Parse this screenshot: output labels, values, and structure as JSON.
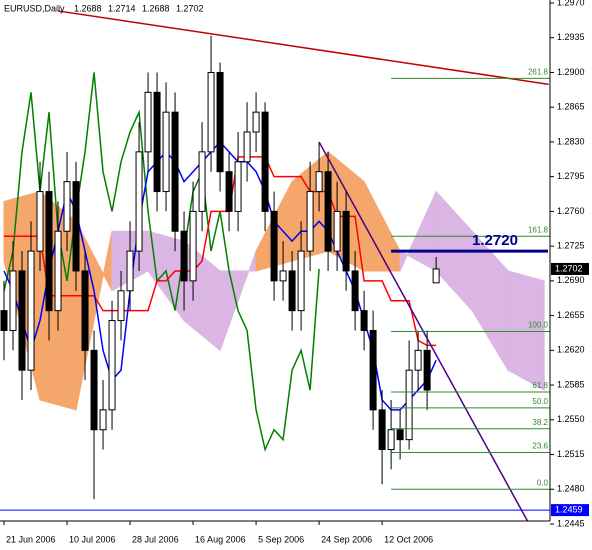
{
  "chart_data": {
    "type": "candlestick",
    "symbol": "EURUSD,Daily",
    "x": [
      0,
      2,
      4,
      6,
      8,
      10,
      12,
      14,
      16,
      18,
      20,
      22,
      24,
      26,
      28,
      30,
      32,
      34,
      36,
      38,
      40,
      42,
      44,
      46,
      48,
      50,
      52,
      54,
      56,
      58,
      60,
      62,
      64,
      66,
      68,
      70,
      72,
      74,
      76,
      78,
      80,
      82,
      84,
      86,
      88,
      90,
      92,
      94,
      96
    ],
    "open": [
      1.266,
      1.264,
      1.27,
      1.26,
      1.272,
      1.278,
      1.266,
      1.274,
      1.279,
      1.27,
      1.262,
      1.254,
      1.256,
      1.265,
      1.268,
      1.272,
      1.282,
      1.288,
      1.278,
      1.286,
      1.274,
      1.269,
      1.276,
      1.282,
      1.29,
      1.28,
      1.276,
      1.281,
      1.284,
      1.286,
      1.276,
      1.269,
      1.27,
      1.266,
      1.272,
      1.278,
      1.28,
      1.272,
      1.276,
      1.27,
      1.266,
      1.264,
      1.256,
      1.252,
      1.254,
      1.253,
      1.26,
      1.262,
      1.2688
    ],
    "high": [
      1.269,
      1.273,
      1.272,
      1.275,
      1.281,
      1.28,
      1.277,
      1.282,
      1.281,
      1.272,
      1.264,
      1.259,
      1.267,
      1.27,
      1.275,
      1.285,
      1.29,
      1.29,
      1.289,
      1.288,
      1.276,
      1.279,
      1.285,
      1.2937,
      1.291,
      1.282,
      1.284,
      1.287,
      1.288,
      1.287,
      1.278,
      1.273,
      1.272,
      1.275,
      1.281,
      1.283,
      1.282,
      1.279,
      1.278,
      1.272,
      1.268,
      1.266,
      1.258,
      1.257,
      1.256,
      1.263,
      1.264,
      1.264,
      1.2714
    ],
    "low": [
      1.261,
      1.262,
      1.257,
      1.258,
      1.27,
      1.263,
      1.264,
      1.272,
      1.268,
      1.259,
      1.247,
      1.252,
      1.254,
      1.263,
      1.266,
      1.27,
      1.28,
      1.276,
      1.276,
      1.272,
      1.266,
      1.267,
      1.274,
      1.28,
      1.278,
      1.274,
      1.274,
      1.279,
      1.282,
      1.274,
      1.267,
      1.267,
      1.264,
      1.264,
      1.27,
      1.276,
      1.27,
      1.27,
      1.268,
      1.264,
      1.262,
      1.254,
      1.2485,
      1.25,
      1.251,
      1.252,
      1.258,
      1.256,
      1.2688
    ],
    "close": [
      1.264,
      1.27,
      1.26,
      1.272,
      1.278,
      1.266,
      1.274,
      1.279,
      1.27,
      1.262,
      1.254,
      1.256,
      1.265,
      1.268,
      1.272,
      1.282,
      1.288,
      1.278,
      1.286,
      1.274,
      1.269,
      1.276,
      1.282,
      1.29,
      1.28,
      1.276,
      1.281,
      1.284,
      1.286,
      1.276,
      1.269,
      1.27,
      1.266,
      1.272,
      1.278,
      1.28,
      1.272,
      1.276,
      1.27,
      1.266,
      1.264,
      1.256,
      1.252,
      1.254,
      1.253,
      1.26,
      1.262,
      1.258,
      1.2702
    ],
    "tenkan": {
      "color": "#0000ff",
      "values": [
        1.27,
        1.268,
        1.265,
        1.262,
        1.265,
        1.27,
        1.274,
        1.278,
        1.276,
        1.272,
        1.268,
        1.262,
        1.259,
        1.26,
        1.268,
        1.275,
        1.28,
        1.281,
        1.282,
        1.281,
        1.279,
        1.28,
        1.281,
        1.282,
        1.283,
        1.282,
        1.281,
        1.281,
        1.28,
        1.278,
        1.275,
        1.274,
        1.273,
        1.274,
        1.274,
        1.275,
        1.274,
        1.272,
        1.27,
        1.268,
        1.265,
        1.262,
        1.257,
        1.256,
        1.256,
        1.257,
        1.258,
        1.259,
        1.261
      ]
    },
    "kijun": {
      "color": "#ff0000",
      "values": [
        1.2735,
        1.2735,
        1.2735,
        1.2735,
        1.2735,
        1.2675,
        1.2675,
        1.2675,
        1.2675,
        1.2675,
        1.2675,
        1.266,
        1.266,
        1.266,
        1.266,
        1.266,
        1.266,
        1.269,
        1.269,
        1.27,
        1.27,
        1.27,
        1.271,
        1.276,
        1.276,
        1.276,
        1.2815,
        1.2815,
        1.2815,
        1.2815,
        1.2795,
        1.2795,
        1.2795,
        1.2795,
        1.278,
        1.278,
        1.278,
        1.2755,
        1.2755,
        1.2755,
        1.269,
        1.269,
        1.269,
        1.267,
        1.267,
        1.267,
        1.263,
        1.2625,
        1.2625
      ]
    },
    "chikou": {
      "color": "#008000",
      "x": [
        0,
        2,
        4,
        6,
        8,
        10,
        12,
        14,
        16,
        18,
        20,
        22,
        24,
        26,
        28,
        30,
        32,
        34,
        36,
        38,
        40,
        42,
        44,
        46,
        48,
        50,
        52,
        54,
        56,
        58,
        60,
        62,
        64,
        66,
        68,
        70
      ],
      "values": [
        1.268,
        1.272,
        1.282,
        1.288,
        1.278,
        1.286,
        1.274,
        1.269,
        1.276,
        1.282,
        1.29,
        1.28,
        1.276,
        1.281,
        1.284,
        1.286,
        1.276,
        1.269,
        1.27,
        1.266,
        1.272,
        1.278,
        1.28,
        1.272,
        1.276,
        1.27,
        1.266,
        1.264,
        1.256,
        1.252,
        1.254,
        1.253,
        1.26,
        1.262,
        1.258,
        1.2702
      ]
    },
    "cloud": {
      "color_up": "#f5a66a",
      "color_down": "#dbb5e3",
      "x": [
        0,
        8,
        16,
        24,
        32,
        40,
        48,
        56,
        64,
        72,
        80,
        88,
        96,
        104,
        112,
        120
      ],
      "span_a": [
        1.277,
        1.278,
        1.275,
        1.268,
        1.27,
        1.265,
        1.262,
        1.272,
        1.279,
        1.282,
        1.279,
        1.272,
        1.27,
        1.266,
        1.26,
        1.258
      ],
      "span_b": [
        1.271,
        1.257,
        1.256,
        1.274,
        1.274,
        1.273,
        1.27,
        1.27,
        1.271,
        1.272,
        1.27,
        1.27,
        1.278,
        1.274,
        1.27,
        1.269
      ]
    },
    "fibo": {
      "color": "#2e8b2e",
      "x_start": 86,
      "levels": [
        {
          "label": "261.8",
          "price": 1.2894
        },
        {
          "label": "161.8",
          "price": 1.2735
        },
        {
          "label": "100.0",
          "price": 1.2639
        },
        {
          "label": "61.8",
          "price": 1.2578
        },
        {
          "label": "50.0",
          "price": 1.2562
        },
        {
          "label": "38.2",
          "price": 1.2541
        },
        {
          "label": "23.6",
          "price": 1.2517
        },
        {
          "label": "0.0",
          "price": 1.248
        }
      ]
    },
    "trendlines": [
      {
        "color": "#c00000",
        "x": [
          12,
          121
        ],
        "price": [
          1.2962,
          1.2888
        ]
      },
      {
        "color": "#4b0082",
        "x": [
          70,
          118
        ],
        "price": [
          1.283,
          1.2434
        ]
      }
    ],
    "target": {
      "color": "#00008b",
      "x_start": 86,
      "price": 1.272,
      "label": "1.2720"
    },
    "support": {
      "color": "#0000ff",
      "price": 1.2459
    },
    "xlim": [
      -0.89,
      121.3
    ],
    "xticks": [
      {
        "value": 0,
        "label": "21 Jun 2006"
      },
      {
        "value": 14,
        "label": "10 Jul 2006"
      },
      {
        "value": 28,
        "label": "28 Jul 2006"
      },
      {
        "value": 42,
        "label": "16 Aug 2006"
      },
      {
        "value": 56,
        "label": "5 Sep 2006"
      },
      {
        "value": 70,
        "label": "24 Sep 2006"
      },
      {
        "value": 84,
        "label": "12 Oct 2006"
      }
    ],
    "ylim": [
      1.2445,
      1.297
    ],
    "yticks": [
      {
        "value": 1.297,
        "label": "1.2970"
      },
      {
        "value": 1.2935,
        "label": "1.2935"
      },
      {
        "value": 1.29,
        "label": "1.2900"
      },
      {
        "value": 1.2865,
        "label": "1.2865"
      },
      {
        "value": 1.283,
        "label": "1.2830"
      },
      {
        "value": 1.2795,
        "label": "1.2795"
      },
      {
        "value": 1.276,
        "label": "1.2760"
      },
      {
        "value": 1.2725,
        "label": "1.2725"
      },
      {
        "value": 1.269,
        "label": "1.2690"
      },
      {
        "value": 1.2655,
        "label": "1.2655"
      },
      {
        "value": 1.262,
        "label": "1.2620"
      },
      {
        "value": 1.2585,
        "label": "1.2585"
      },
      {
        "value": 1.255,
        "label": "1.2550"
      },
      {
        "value": 1.2515,
        "label": "1.2515"
      },
      {
        "value": 1.248,
        "label": "1.2480"
      },
      {
        "value": 1.2445,
        "label": "1.2445"
      }
    ]
  }
}
